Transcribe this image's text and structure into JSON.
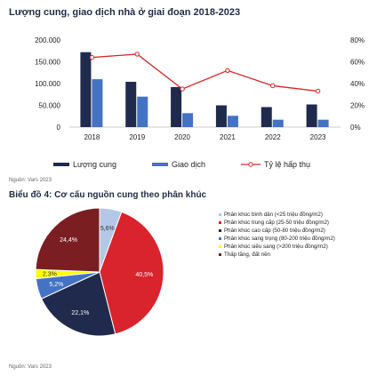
{
  "chart_data": [
    {
      "type": "bar",
      "title": "Lượng cung, giao dịch nhà ở giai đoạn 2018-2023",
      "categories": [
        "2018",
        "2019",
        "2020",
        "2021",
        "2022",
        "2023"
      ],
      "series": [
        {
          "name": "Lượng cung",
          "values": [
            172000,
            104000,
            92000,
            50000,
            46000,
            52000
          ],
          "color": "#1f2a4d"
        },
        {
          "name": "Giao dịch",
          "values": [
            110000,
            70000,
            32000,
            26000,
            17000,
            17000
          ],
          "color": "#4472c4"
        }
      ],
      "line": {
        "name": "Tỷ lệ hấp thụ",
        "values": [
          64,
          67,
          35,
          52,
          38,
          33
        ],
        "color": "#d62728"
      },
      "y_ticks": [
        "200.000",
        "150.000",
        "100.000",
        "50.000",
        "0"
      ],
      "y2_ticks": [
        "80%",
        "60%",
        "40%",
        "20%",
        "0%"
      ],
      "ylim": [
        0,
        200000
      ],
      "y2lim": [
        0,
        80
      ]
    },
    {
      "type": "pie",
      "title": "Biểu đồ 4: Cơ cấu nguồn cung theo phân khúc",
      "labels": [
        "Phân khúc bình dân (<25 triệu đồng/m2)",
        "Phân khúc trung cấp (25-50 triệu đồng/m2)",
        "Phân khúc cao cấp (50-80 triệu đồng/m2)",
        "Phân khúc sang trọng (80-200 triệu đồng/m2)",
        "Phân khúc siêu sang (>200 triệu đồng/m2)",
        "Thấp tầng, đất nền"
      ],
      "values": [
        5.6,
        40.5,
        22.1,
        5.2,
        2.3,
        24.4
      ],
      "value_labels": [
        "5,6%",
        "40,5%",
        "22,1%",
        "5,2%",
        "2,3%",
        "24,4%"
      ],
      "colors": [
        "#b4c7e7",
        "#d9232d",
        "#1f2a4d",
        "#4472c4",
        "#ffff00",
        "#7b1e22"
      ]
    }
  ],
  "source_top": "Nguồn: Vars 2023",
  "source_bottom": "Nguồn: Vars 2023"
}
